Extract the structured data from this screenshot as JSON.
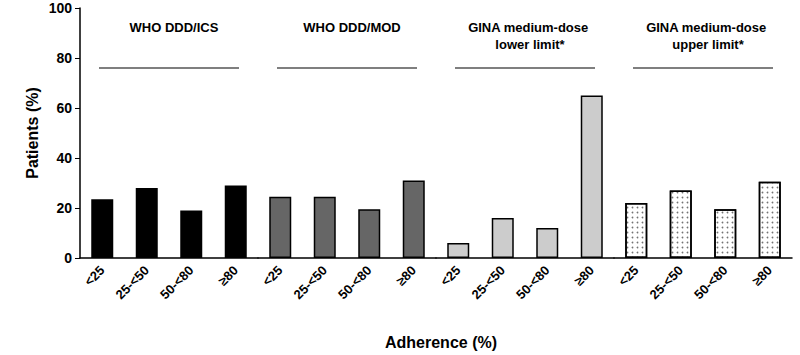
{
  "chart_data": {
    "type": "bar",
    "xlabel": "Adherence (%)",
    "ylabel": "Patients (%)",
    "categories": [
      "<25",
      "25-<50",
      "50-<80",
      "≥80"
    ],
    "series": [
      {
        "name": "WHO DDD/ICS",
        "color": "#000000",
        "values": [
          23.5,
          28,
          19,
          29
        ]
      },
      {
        "name": "WHO DDD/MOD",
        "color": "#666666",
        "values": [
          24.5,
          24.5,
          19.5,
          31
        ]
      },
      {
        "name": "GINA medium-dose lower limit*",
        "color": "#cccccc",
        "values": [
          6,
          16,
          12,
          65
        ]
      },
      {
        "name": "GINA medium-dose upper limit*",
        "color": "#ffffff",
        "values": [
          22,
          27,
          19.5,
          30.5
        ]
      }
    ],
    "ylim": [
      0,
      100
    ],
    "yticks": [
      0,
      20,
      40,
      60,
      80,
      100
    ],
    "grid": false
  }
}
